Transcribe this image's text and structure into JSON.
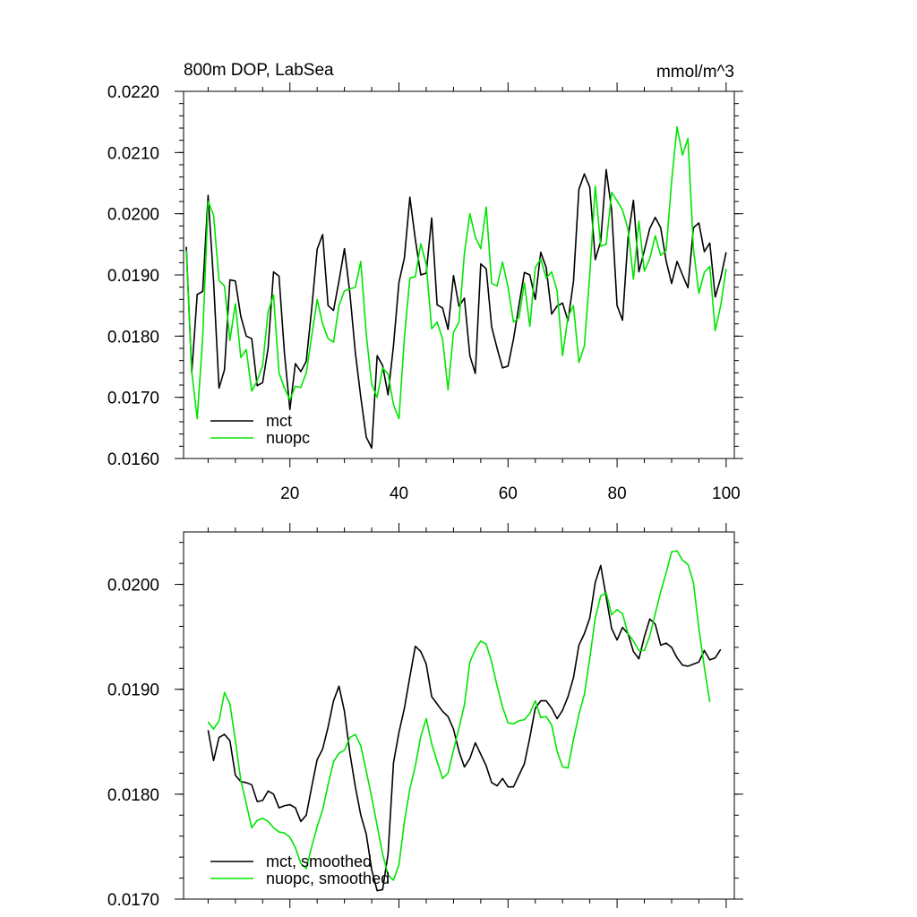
{
  "chart_data": [
    {
      "type": "line",
      "title": "800m DOP, LabSea",
      "units_label": "mmol/m^3",
      "xlim": [
        0.5,
        101.5
      ],
      "ylim": [
        0.016,
        0.022
      ],
      "xticks": [
        20,
        40,
        60,
        80,
        100
      ],
      "yticks": [
        "0.0160",
        "0.0170",
        "0.0180",
        "0.0190",
        "0.0200",
        "0.0210",
        "0.0220"
      ],
      "legend": "bottom-left",
      "series": [
        {
          "name": "mct",
          "color": "#000000",
          "values": [
            0.01946,
            0.0174,
            0.01868,
            0.01873,
            0.0203,
            0.0189,
            0.01715,
            0.01745,
            0.01892,
            0.0189,
            0.01832,
            0.018,
            0.01796,
            0.01719,
            0.01724,
            0.0178,
            0.01905,
            0.01898,
            0.01772,
            0.0168,
            0.01755,
            0.01742,
            0.01759,
            0.01845,
            0.01942,
            0.01966,
            0.0185,
            0.01842,
            0.0189,
            0.01943,
            0.0187,
            0.01773,
            0.017,
            0.01635,
            0.01617,
            0.01768,
            0.01752,
            0.01704,
            0.01785,
            0.01888,
            0.01928,
            0.02027,
            0.01958,
            0.019,
            0.01903,
            0.01993,
            0.01851,
            0.01846,
            0.01811,
            0.01899,
            0.01849,
            0.01862,
            0.01768,
            0.01739,
            0.01918,
            0.0191,
            0.01815,
            0.0178,
            0.01748,
            0.01751,
            0.01795,
            0.0185,
            0.01904,
            0.019,
            0.0186,
            0.01937,
            0.01912,
            0.01836,
            0.01849,
            0.01854,
            0.01825,
            0.01889,
            0.0204,
            0.02065,
            0.02043,
            0.01925,
            0.01955,
            0.02072,
            0.02006,
            0.0185,
            0.01826,
            0.0196,
            0.02022,
            0.01905,
            0.0194,
            0.01976,
            0.01994,
            0.01977,
            0.01923,
            0.01886,
            0.01922,
            0.019,
            0.01879,
            0.01977,
            0.01985,
            0.01938,
            0.01952,
            0.01864,
            0.01895,
            0.01937
          ]
        },
        {
          "name": "nuopc",
          "color": "#00e600",
          "values": [
            0.0194,
            0.01742,
            0.01665,
            0.01797,
            0.0202,
            0.01998,
            0.01891,
            0.01882,
            0.01793,
            0.01853,
            0.01765,
            0.01778,
            0.0171,
            0.01727,
            0.01752,
            0.0184,
            0.01867,
            0.0174,
            0.01715,
            0.01696,
            0.01718,
            0.01716,
            0.0174,
            0.018,
            0.0186,
            0.0182,
            0.01796,
            0.0179,
            0.0185,
            0.01874,
            0.01877,
            0.0188,
            0.01922,
            0.01803,
            0.01721,
            0.017,
            0.01748,
            0.01738,
            0.01688,
            0.01665,
            0.01798,
            0.01895,
            0.01897,
            0.01951,
            0.01917,
            0.01812,
            0.01823,
            0.01795,
            0.01712,
            0.01806,
            0.01823,
            0.01935,
            0.02,
            0.01962,
            0.01943,
            0.02011,
            0.01886,
            0.01882,
            0.01921,
            0.0188,
            0.01823,
            0.0183,
            0.01887,
            0.01816,
            0.01912,
            0.01926,
            0.01895,
            0.01905,
            0.01874,
            0.01768,
            0.01832,
            0.0185,
            0.01757,
            0.01784,
            0.01902,
            0.02045,
            0.01947,
            0.0195,
            0.02035,
            0.02021,
            0.02006,
            0.01975,
            0.01893,
            0.01988,
            0.01906,
            0.01927,
            0.01964,
            0.01932,
            0.0194,
            0.02053,
            0.02142,
            0.02096,
            0.02123,
            0.01943,
            0.0187,
            0.01904,
            0.01914,
            0.01809,
            0.0185,
            0.0191
          ]
        }
      ]
    },
    {
      "type": "line",
      "title": "",
      "xlim": [
        0.5,
        101.5
      ],
      "ylim": [
        0.017,
        0.0205
      ],
      "yticks": [
        "0.0170",
        "0.0180",
        "0.0190",
        "0.0200"
      ],
      "legend": "bottom-left",
      "series": [
        {
          "name": "mct, smoothed",
          "color": "#000000",
          "x_start": 5,
          "values": [
            0.01861,
            0.01832,
            0.01854,
            0.01857,
            0.01851,
            0.01818,
            0.01812,
            0.01811,
            0.01809,
            0.01793,
            0.01794,
            0.01803,
            0.018,
            0.01787,
            0.01789,
            0.0179,
            0.01787,
            0.01774,
            0.0178,
            0.01807,
            0.01833,
            0.01843,
            0.01864,
            0.01889,
            0.01903,
            0.01879,
            0.01839,
            0.01807,
            0.0178,
            0.01762,
            0.01728,
            0.01708,
            0.01709,
            0.01743,
            0.0183,
            0.01859,
            0.01882,
            0.01912,
            0.01941,
            0.01936,
            0.01924,
            0.01893,
            0.01886,
            0.01879,
            0.01874,
            0.01862,
            0.01841,
            0.01826,
            0.01834,
            0.01849,
            0.01838,
            0.01827,
            0.01811,
            0.01808,
            0.01815,
            0.01807,
            0.01807,
            0.01818,
            0.01829,
            0.01854,
            0.01882,
            0.01889,
            0.01889,
            0.01882,
            0.01872,
            0.0188,
            0.01893,
            0.01911,
            0.01942,
            0.01953,
            0.01968,
            0.02002,
            0.02018,
            0.01988,
            0.01958,
            0.01947,
            0.01959,
            0.01953,
            0.01936,
            0.01929,
            0.0195,
            0.01967,
            0.01962,
            0.01942,
            0.01944,
            0.0194,
            0.0193,
            0.01923,
            0.01922,
            0.01924,
            0.01926,
            0.01937,
            0.01928,
            0.0193,
            0.01938
          ]
        },
        {
          "name": "nuopc, smoothed",
          "color": "#00e600",
          "x_start": 5,
          "values": [
            0.01869,
            0.01862,
            0.0187,
            0.01897,
            0.01886,
            0.01851,
            0.01813,
            0.01791,
            0.01768,
            0.01775,
            0.01777,
            0.01774,
            0.01768,
            0.01764,
            0.01763,
            0.01759,
            0.01749,
            0.01734,
            0.01729,
            0.0175,
            0.01769,
            0.01785,
            0.01809,
            0.01831,
            0.01839,
            0.01842,
            0.01854,
            0.01857,
            0.01846,
            0.01822,
            0.01797,
            0.0177,
            0.01743,
            0.01723,
            0.01718,
            0.01733,
            0.01774,
            0.01805,
            0.01827,
            0.01855,
            0.01872,
            0.01848,
            0.01831,
            0.01815,
            0.0182,
            0.01842,
            0.01863,
            0.01885,
            0.01926,
            0.01938,
            0.01946,
            0.01943,
            0.01926,
            0.01903,
            0.01883,
            0.01868,
            0.01867,
            0.0187,
            0.01871,
            0.01877,
            0.01889,
            0.01873,
            0.01874,
            0.01866,
            0.01841,
            0.01826,
            0.01825,
            0.01852,
            0.01876,
            0.01895,
            0.0193,
            0.01968,
            0.01989,
            0.01992,
            0.01971,
            0.01976,
            0.01972,
            0.01953,
            0.01946,
            0.01937,
            0.01937,
            0.01951,
            0.01972,
            0.01993,
            0.02011,
            0.02031,
            0.02032,
            0.02023,
            0.02019,
            0.02002,
            0.01958,
            0.01921,
            0.01888
          ]
        }
      ]
    }
  ]
}
